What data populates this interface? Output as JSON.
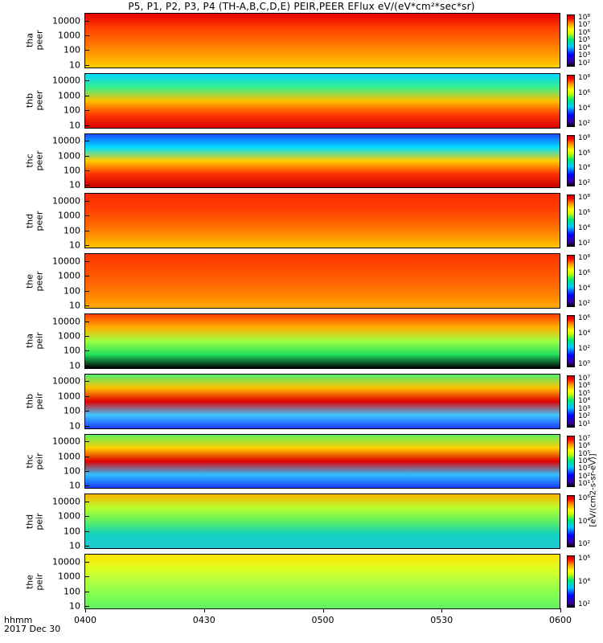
{
  "title": "P5, P1, P2, P3, P4 (TH-A,B,C,D,E) PEIR,PEER EFlux eV/(eV*cm²*sec*sr)",
  "chart_data": {
    "type": "heatmap",
    "title": "P5, P1, P2, P3, P4 (TH-A,B,C,D,E) PEIR,PEER EFlux eV/(eV*cm²*sec*sr)",
    "xlabel": "hhmm",
    "date_label": "2017 Dec 30",
    "x_ticks": [
      "0400",
      "0430",
      "0500",
      "0530",
      "0600"
    ],
    "y_scale": "log",
    "y_ticks": [
      "10000",
      "1000",
      "100",
      "10"
    ],
    "colorbar_unit": "[eV/(cm2-s-sr-eV)]",
    "panels": [
      {
        "id": "tha-peer",
        "label": [
          "tha",
          "peer"
        ],
        "cbar_ticks": [
          "10⁸",
          "10⁷",
          "10⁶",
          "10⁵",
          "10⁴",
          "10³",
          "10²"
        ],
        "colors": [
          "#e60000",
          "#ff3b00",
          "#ff6a00",
          "#ff9a00",
          "#ffd000"
        ]
      },
      {
        "id": "thb-peer",
        "label": [
          "thb",
          "peer"
        ],
        "cbar_ticks": [
          "10⁸",
          "10⁶",
          "10⁴",
          "10²"
        ],
        "colors": [
          "#00d7ff",
          "#38f08a",
          "#ffc000",
          "#ff3c00",
          "#d80000"
        ]
      },
      {
        "id": "thc-peer",
        "label": [
          "thc",
          "peer"
        ],
        "cbar_ticks": [
          "10⁸",
          "10⁶",
          "10⁴",
          "10²"
        ],
        "colors": [
          "#1a4cff",
          "#00e0ff",
          "#ffd000",
          "#ff3000",
          "#c80000"
        ]
      },
      {
        "id": "thd-peer",
        "label": [
          "thd",
          "peer"
        ],
        "cbar_ticks": [
          "10⁸",
          "10⁶",
          "10⁴",
          "10²"
        ],
        "colors": [
          "#ff2a00",
          "#ff3a00",
          "#ff5c00",
          "#ff8a00",
          "#ffc800"
        ]
      },
      {
        "id": "the-peer",
        "label": [
          "the",
          "peer"
        ],
        "cbar_ticks": [
          "10⁸",
          "10⁶",
          "10⁴",
          "10²"
        ],
        "colors": [
          "#ff3500",
          "#ff4a00",
          "#ff6000",
          "#ff8200",
          "#ffaa00"
        ]
      },
      {
        "id": "tha-peir",
        "label": [
          "tha",
          "peir"
        ],
        "cbar_ticks": [
          "10⁶",
          "10⁴",
          "10²",
          "10⁰"
        ],
        "colors": [
          "#ff4000",
          "#ffb000",
          "#9cff40",
          "#20e060",
          "#000000"
        ]
      },
      {
        "id": "thb-peir",
        "label": [
          "thb",
          "peir"
        ],
        "cbar_ticks": [
          "10⁷",
          "10⁶",
          "10⁵",
          "10⁴",
          "10³",
          "10²",
          "10¹"
        ],
        "colors": [
          "#50f070",
          "#ffc000",
          "#e00000",
          "#40c8ff",
          "#1a3cff"
        ]
      },
      {
        "id": "thc-peir",
        "label": [
          "thc",
          "peir"
        ],
        "cbar_ticks": [
          "10⁷",
          "10⁶",
          "10⁵",
          "10⁴",
          "10³",
          "10²",
          "10¹"
        ],
        "colors": [
          "#60f060",
          "#ffd000",
          "#e00000",
          "#30c0ff",
          "#1a3cff"
        ]
      },
      {
        "id": "thd-peir",
        "label": [
          "thd",
          "peir"
        ],
        "cbar_ticks": [
          "10⁶",
          "10⁴",
          "10²"
        ],
        "colors": [
          "#ffb000",
          "#b8ff30",
          "#60f060",
          "#10d0c0",
          "#20c8d0"
        ]
      },
      {
        "id": "the-peir",
        "label": [
          "the",
          "peir"
        ],
        "cbar_ticks": [
          "10⁶",
          "10⁴",
          "10²"
        ],
        "colors": [
          "#ffe000",
          "#e0ff20",
          "#b0ff40",
          "#80ff50",
          "#60f060"
        ]
      }
    ]
  }
}
